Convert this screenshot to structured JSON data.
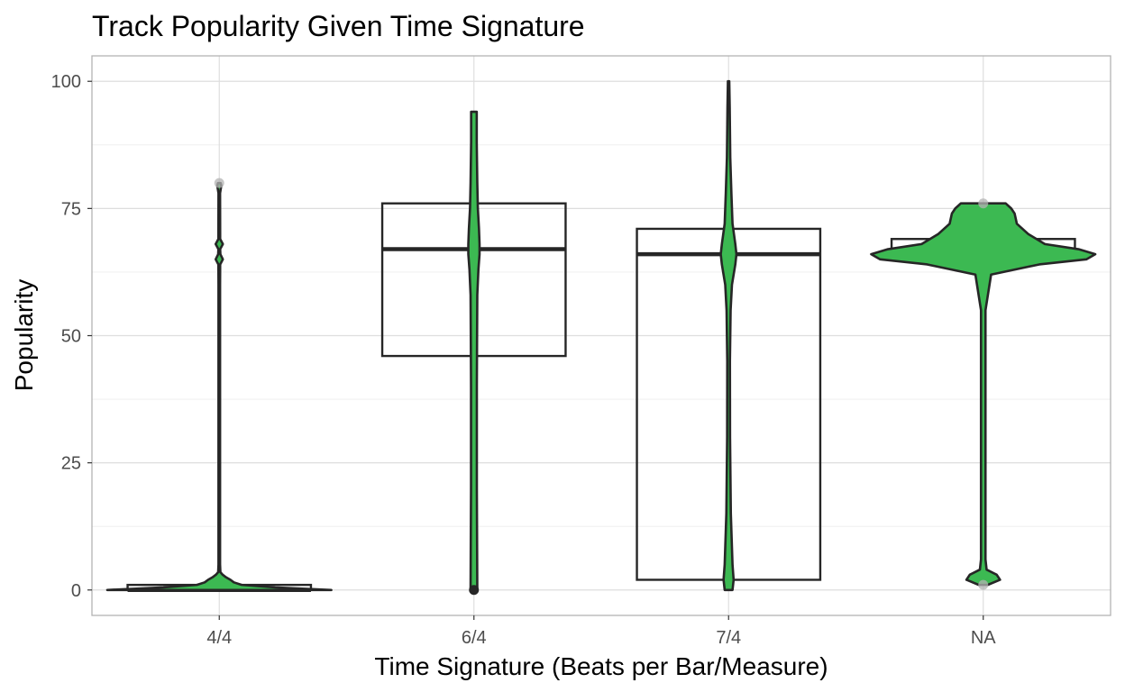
{
  "chart_data": {
    "type": "violin",
    "title": "Track Popularity Given Time Signature",
    "xlabel": "Time Signature (Beats per Bar/Measure)",
    "ylabel": "Popularity",
    "categories": [
      "4/4",
      "6/4",
      "7/4",
      "NA"
    ],
    "ylim": [
      -5,
      105
    ],
    "yticks": [
      0,
      25,
      50,
      75,
      100
    ],
    "grid": true,
    "legend": "none",
    "fill_color": "#3cb952",
    "line_color": "#262626",
    "outlier_color": "#b3b3b3",
    "boxplots": [
      {
        "category": "4/4",
        "q1": 0,
        "median": 0,
        "q3": 1,
        "whisker_low": 0,
        "whisker_high": 1,
        "outliers": [
          80
        ]
      },
      {
        "category": "6/4",
        "q1": 46,
        "median": 67,
        "q3": 76,
        "whisker_low": 0,
        "whisker_high": 94,
        "outliers": []
      },
      {
        "category": "7/4",
        "q1": 2,
        "median": 66,
        "q3": 71,
        "whisker_low": 0,
        "whisker_high": 100,
        "outliers": []
      },
      {
        "category": "NA",
        "q1": 66,
        "median": 66,
        "q3": 69,
        "whisker_low": 65,
        "whisker_high": 72,
        "outliers": [
          1,
          76
        ]
      }
    ],
    "violins": [
      {
        "category": "4/4",
        "min": 0,
        "max": 80,
        "density": [
          [
            0,
            1.0
          ],
          [
            0.5,
            0.5
          ],
          [
            1,
            0.2
          ],
          [
            1.5,
            0.13
          ],
          [
            2,
            0.1
          ],
          [
            2.5,
            0.06
          ],
          [
            3,
            0.03
          ],
          [
            3.5,
            0.01
          ],
          [
            5,
            0.007
          ],
          [
            60,
            0.007
          ],
          [
            64,
            0.008
          ],
          [
            65,
            0.032
          ],
          [
            66,
            0.01
          ],
          [
            67,
            0.008
          ],
          [
            68,
            0.032
          ],
          [
            69,
            0.008
          ],
          [
            78,
            0.007
          ],
          [
            79.5,
            0.018
          ],
          [
            80,
            0.012
          ]
        ]
      },
      {
        "category": "6/4",
        "min": 0,
        "max": 94,
        "density": [
          [
            0,
            0.03
          ],
          [
            20,
            0.026
          ],
          [
            40,
            0.026
          ],
          [
            50,
            0.028
          ],
          [
            58,
            0.03
          ],
          [
            63,
            0.04
          ],
          [
            66,
            0.05
          ],
          [
            68,
            0.05
          ],
          [
            71,
            0.045
          ],
          [
            75,
            0.035
          ],
          [
            80,
            0.03
          ],
          [
            88,
            0.025
          ],
          [
            94,
            0.025
          ]
        ]
      },
      {
        "category": "7/4",
        "min": 0,
        "max": 100,
        "density": [
          [
            0,
            0.035
          ],
          [
            2,
            0.045
          ],
          [
            5,
            0.035
          ],
          [
            15,
            0.02
          ],
          [
            30,
            0.013
          ],
          [
            45,
            0.012
          ],
          [
            55,
            0.018
          ],
          [
            60,
            0.03
          ],
          [
            64,
            0.06
          ],
          [
            66,
            0.07
          ],
          [
            68,
            0.06
          ],
          [
            72,
            0.035
          ],
          [
            78,
            0.025
          ],
          [
            85,
            0.015
          ],
          [
            95,
            0.01
          ],
          [
            100,
            0.006
          ]
        ]
      },
      {
        "category": "NA",
        "min": 1,
        "max": 76,
        "density": [
          [
            1,
            0.04
          ],
          [
            2,
            0.15
          ],
          [
            3,
            0.12
          ],
          [
            4,
            0.03
          ],
          [
            6,
            0.02
          ],
          [
            55,
            0.02
          ],
          [
            62,
            0.07
          ],
          [
            64,
            0.5
          ],
          [
            65,
            0.92
          ],
          [
            66,
            1.0
          ],
          [
            67,
            0.85
          ],
          [
            68,
            0.55
          ],
          [
            70,
            0.4
          ],
          [
            72,
            0.3
          ],
          [
            74,
            0.28
          ],
          [
            75,
            0.25
          ],
          [
            76,
            0.2
          ]
        ]
      }
    ]
  }
}
